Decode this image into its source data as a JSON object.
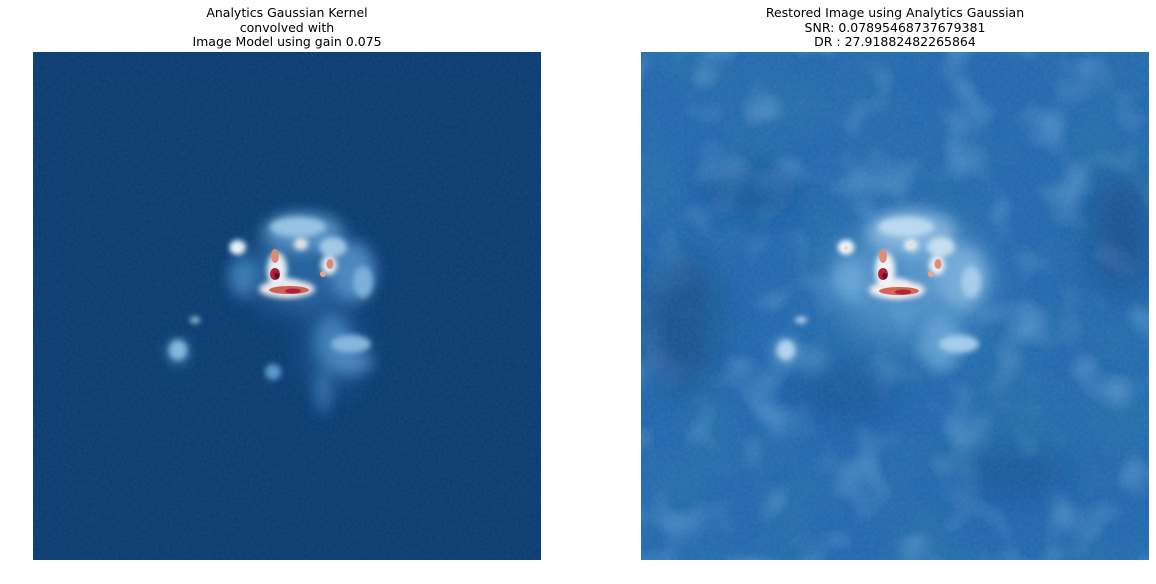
{
  "figure": {
    "colormap": "RdBu_r",
    "panels": [
      {
        "id": "model",
        "title_lines": [
          "Analytics Gaussian Kernel",
          "convolved with",
          "Image Model using gain 0.075"
        ],
        "background_color": "#0b3a6e"
      },
      {
        "id": "restored",
        "title_lines": [
          "Restored Image using Analytics Gaussian",
          "SNR: 0.07895468737679381",
          "DR : 27.91882482265864"
        ],
        "background_color": "#2166ac"
      }
    ]
  }
}
